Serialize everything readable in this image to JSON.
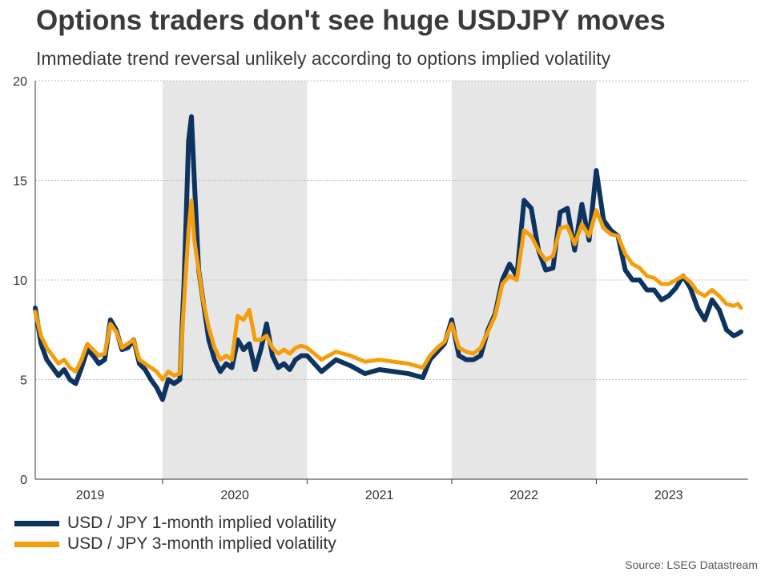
{
  "chart_data": {
    "type": "line",
    "title": "Options traders don't see huge USDJPY moves",
    "subtitle": "Immediate trend reversal unlikely according to options implied volatility",
    "xlabel": "",
    "ylabel": "",
    "ylim": [
      0,
      20
    ],
    "xlim": [
      2018.62,
      2023.55
    ],
    "yticks": [
      0,
      5,
      10,
      15,
      20
    ],
    "year_labels": [
      {
        "label": "2019",
        "center": 2019.0
      },
      {
        "label": "2020",
        "center": 2020.0
      },
      {
        "label": "2021",
        "center": 2021.0
      },
      {
        "label": "2022",
        "center": 2022.0
      },
      {
        "label": "2023",
        "center": 2023.0
      }
    ],
    "year_boundaries": [
      2019.5,
      2020.5,
      2021.5,
      2022.5
    ],
    "shaded_periods": [
      [
        2019.5,
        2020.5
      ],
      [
        2021.5,
        2022.5
      ]
    ],
    "grid": true,
    "colors": {
      "series1": "#0d3461",
      "series2": "#f59e0c",
      "shade": "#e6e6e6",
      "grid": "#bfbfbf",
      "axis": "#333333"
    },
    "series": [
      {
        "name": "USD / JPY 1-month implied volatility",
        "x": [
          2018.62,
          2018.66,
          2018.7,
          2018.74,
          2018.78,
          2018.82,
          2018.86,
          2018.9,
          2018.94,
          2018.98,
          2019.02,
          2019.06,
          2019.1,
          2019.14,
          2019.18,
          2019.22,
          2019.26,
          2019.3,
          2019.34,
          2019.38,
          2019.42,
          2019.46,
          2019.5,
          2019.54,
          2019.58,
          2019.62,
          2019.65,
          2019.68,
          2019.7,
          2019.72,
          2019.75,
          2019.78,
          2019.82,
          2019.86,
          2019.9,
          2019.94,
          2019.98,
          2020.02,
          2020.06,
          2020.1,
          2020.14,
          2020.18,
          2020.22,
          2020.26,
          2020.3,
          2020.34,
          2020.38,
          2020.42,
          2020.46,
          2020.5,
          2020.6,
          2020.7,
          2020.8,
          2020.9,
          2021.0,
          2021.1,
          2021.2,
          2021.3,
          2021.35,
          2021.4,
          2021.45,
          2021.5,
          2021.55,
          2021.6,
          2021.65,
          2021.7,
          2021.75,
          2021.8,
          2021.85,
          2021.9,
          2021.95,
          2022.0,
          2022.05,
          2022.1,
          2022.15,
          2022.2,
          2022.25,
          2022.3,
          2022.35,
          2022.4,
          2022.45,
          2022.5,
          2022.55,
          2022.6,
          2022.65,
          2022.7,
          2022.75,
          2022.8,
          2022.85,
          2022.9,
          2022.95,
          2023.0,
          2023.05,
          2023.1,
          2023.15,
          2023.2,
          2023.25,
          2023.3,
          2023.35,
          2023.4,
          2023.45,
          2023.48,
          2023.5
        ],
        "values": [
          8.6,
          6.8,
          6.0,
          5.6,
          5.2,
          5.5,
          5.0,
          4.8,
          5.6,
          6.5,
          6.2,
          5.8,
          6.0,
          8.0,
          7.5,
          6.5,
          6.6,
          7.0,
          5.8,
          5.5,
          5.0,
          4.6,
          4.0,
          5.0,
          4.8,
          5.0,
          10.0,
          17.0,
          18.2,
          15.0,
          10.5,
          9.0,
          7.0,
          6.0,
          5.4,
          5.8,
          5.6,
          7.0,
          6.5,
          6.8,
          5.5,
          6.5,
          7.8,
          6.2,
          5.6,
          5.8,
          5.5,
          6.0,
          6.2,
          6.2,
          5.4,
          6.0,
          5.7,
          5.3,
          5.5,
          5.4,
          5.3,
          5.1,
          6.0,
          6.4,
          6.8,
          8.0,
          6.2,
          6.0,
          6.0,
          6.2,
          7.5,
          8.3,
          10.0,
          10.8,
          10.2,
          14.0,
          13.6,
          11.5,
          10.5,
          10.6,
          13.4,
          13.6,
          11.5,
          13.8,
          12.0,
          15.5,
          13.0,
          12.5,
          12.2,
          10.5,
          10.0,
          10.0,
          9.5,
          9.5,
          9.0,
          9.2,
          9.6,
          10.2,
          9.6,
          8.6,
          8.0,
          9.0,
          8.5,
          7.5,
          7.2,
          7.3,
          7.4
        ]
      },
      {
        "name": "USD / JPY 3-month implied volatility",
        "x": [
          2018.62,
          2018.66,
          2018.7,
          2018.74,
          2018.78,
          2018.82,
          2018.86,
          2018.9,
          2018.94,
          2018.98,
          2019.02,
          2019.06,
          2019.1,
          2019.14,
          2019.18,
          2019.22,
          2019.26,
          2019.3,
          2019.34,
          2019.38,
          2019.42,
          2019.46,
          2019.5,
          2019.54,
          2019.58,
          2019.62,
          2019.65,
          2019.68,
          2019.7,
          2019.72,
          2019.75,
          2019.78,
          2019.82,
          2019.86,
          2019.9,
          2019.94,
          2019.98,
          2020.02,
          2020.06,
          2020.1,
          2020.14,
          2020.18,
          2020.22,
          2020.26,
          2020.3,
          2020.34,
          2020.38,
          2020.42,
          2020.46,
          2020.5,
          2020.6,
          2020.7,
          2020.8,
          2020.9,
          2021.0,
          2021.1,
          2021.2,
          2021.3,
          2021.35,
          2021.4,
          2021.45,
          2021.5,
          2021.55,
          2021.6,
          2021.65,
          2021.7,
          2021.75,
          2021.8,
          2021.85,
          2021.9,
          2021.95,
          2022.0,
          2022.05,
          2022.1,
          2022.15,
          2022.2,
          2022.25,
          2022.3,
          2022.35,
          2022.4,
          2022.45,
          2022.5,
          2022.55,
          2022.6,
          2022.65,
          2022.7,
          2022.75,
          2022.8,
          2022.85,
          2022.9,
          2022.95,
          2023.0,
          2023.05,
          2023.1,
          2023.15,
          2023.2,
          2023.25,
          2023.3,
          2023.35,
          2023.4,
          2023.45,
          2023.48,
          2023.5
        ],
        "values": [
          8.4,
          7.2,
          6.6,
          6.2,
          5.8,
          6.0,
          5.6,
          5.4,
          6.0,
          6.8,
          6.5,
          6.2,
          6.3,
          7.8,
          7.4,
          6.6,
          6.8,
          7.0,
          6.0,
          5.8,
          5.6,
          5.4,
          5.0,
          5.4,
          5.2,
          5.3,
          9.0,
          12.5,
          14.0,
          12.0,
          10.5,
          9.0,
          7.6,
          6.6,
          6.0,
          6.2,
          6.0,
          8.2,
          8.0,
          8.5,
          7.0,
          7.0,
          7.2,
          6.6,
          6.3,
          6.5,
          6.3,
          6.6,
          6.7,
          6.6,
          6.0,
          6.4,
          6.2,
          5.9,
          6.0,
          5.9,
          5.8,
          5.6,
          6.2,
          6.6,
          6.9,
          7.8,
          6.6,
          6.4,
          6.3,
          6.6,
          7.4,
          8.2,
          9.8,
          10.2,
          10.0,
          12.5,
          12.2,
          11.5,
          11.0,
          11.2,
          12.6,
          12.7,
          11.8,
          12.8,
          12.2,
          13.5,
          12.6,
          12.3,
          12.2,
          11.3,
          10.8,
          10.6,
          10.2,
          10.1,
          9.8,
          9.8,
          10.0,
          10.2,
          9.9,
          9.4,
          9.2,
          9.5,
          9.2,
          8.8,
          8.7,
          8.8,
          8.6
        ]
      }
    ],
    "legend": "bottom-left"
  },
  "source": "Source: LSEG Datastream"
}
